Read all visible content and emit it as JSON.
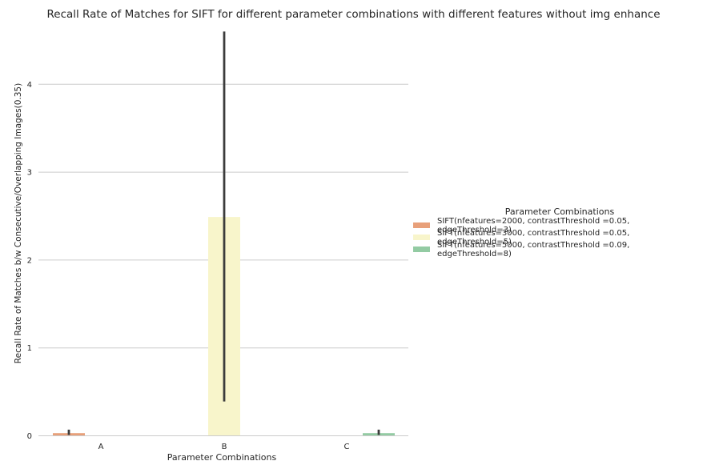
{
  "chart_data": {
    "type": "bar",
    "title": "Recall Rate of Matches for SIFT for different parameter combinations with different features without img enhance",
    "xlabel": "Parameter Combinations",
    "ylabel": "Recall Rate of Matches b/w Consecutive/Overlapping Images(0.35)",
    "categories": [
      "A",
      "B",
      "C"
    ],
    "ylim": [
      0,
      4.6
    ],
    "yticks": [
      0,
      1,
      2,
      3,
      4
    ],
    "grid": "horizontal",
    "legend_title": "Parameter Combinations",
    "legend_position": "right",
    "series": [
      {
        "name": "SIFT(nfeatures=2000, contrastThreshold =0.05, edgeThreshold=3)",
        "color": "#e8a07a",
        "values": [
          0.03,
          null,
          null
        ],
        "error_low": [
          0.01,
          null,
          null
        ],
        "error_high": [
          0.07,
          null,
          null
        ]
      },
      {
        "name": "SIFT(nfeatures=3000, contrastThreshold =0.05, edgeThreshold=5)",
        "color": "#f8f5cb",
        "values": [
          null,
          2.49,
          null
        ],
        "error_low": [
          null,
          0.39,
          null
        ],
        "error_high": [
          null,
          4.6,
          null
        ]
      },
      {
        "name": "SIFT(nfeatures=5000, contrastThreshold =0.09, edgeThreshold=8)",
        "color": "#93cba3",
        "values": [
          null,
          null,
          0.03
        ],
        "error_low": [
          null,
          null,
          0.01
        ],
        "error_high": [
          null,
          null,
          0.07
        ]
      }
    ]
  }
}
